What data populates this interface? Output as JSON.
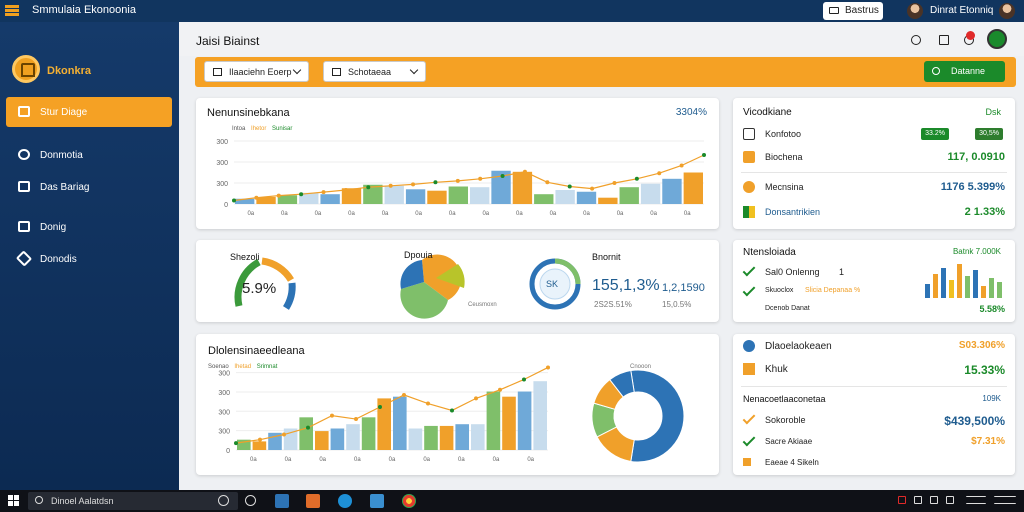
{
  "app": {
    "title": "Smmulaia Ekonoonia",
    "top_button": "Bastrus",
    "user_name": "Dinrat Etonniq"
  },
  "sidebar": {
    "brand": "Dkonkra",
    "items": [
      {
        "label": "Stur Diage",
        "icon": "home-icon"
      },
      {
        "label": "Donmotia",
        "icon": "users-icon"
      },
      {
        "label": "Das Bariag",
        "icon": "database-icon"
      },
      {
        "label": "Donig",
        "icon": "calendar-icon"
      },
      {
        "label": "Donodis",
        "icon": "wrench-icon"
      }
    ]
  },
  "header": {
    "title": "Jaisi Biainst"
  },
  "filters": {
    "dropdown1": "Ilaaciehn Eoerp",
    "dropdown2": "Schotaeaa",
    "action_button": "Datanne"
  },
  "chart1": {
    "title": "Nenunsinebkana",
    "right_value": "3304%",
    "legend": [
      "Intoa",
      "Ihetor",
      "Sunisar"
    ],
    "chart_data": {
      "type": "bar",
      "title": "Nenunsinebkana",
      "ylim": [
        0,
        200
      ],
      "y_ticks": [
        "0",
        "300",
        "300",
        "300"
      ],
      "x_ticks": [
        "0a",
        "0a",
        "0a",
        "0a",
        "0a",
        "0a",
        "0a",
        "0a",
        "0a",
        "0a",
        "0a",
        "0a",
        "0a",
        "0a"
      ],
      "colors": [
        "#6fa9d8",
        "#f0a02a",
        "#7fbf6a",
        "#c7dced"
      ],
      "values": [
        15,
        20,
        25,
        32,
        28,
        45,
        55,
        52,
        42,
        38,
        50,
        48,
        95,
        92,
        28,
        40,
        35,
        18,
        48,
        58,
        72,
        90
      ],
      "line": [
        10,
        18,
        24,
        28,
        34,
        40,
        48,
        52,
        56,
        62,
        66,
        72,
        80,
        92,
        62,
        50,
        44,
        60,
        72,
        88,
        110,
        140
      ]
    }
  },
  "gauge_card": {
    "label": "Shezoli",
    "value": "5.9%"
  },
  "pie_card": {
    "label": "Dpouia",
    "caption": "Ceusmoxn"
  },
  "ring_card": {
    "label": "Bnornit",
    "center": "SK",
    "big_value": "155,1,3%",
    "small_value": "1,2,1590",
    "sub_left": "2S2S.51%",
    "sub_right": "15,0.5%"
  },
  "chart2": {
    "title": "Dlolensinaeedleana",
    "legend": [
      "Soenao",
      "Ihetad",
      "Srimnat"
    ],
    "chart_data": {
      "type": "bar",
      "title": "Dlolensinaeedleana",
      "ylim": [
        0,
        100
      ],
      "y_ticks": [
        "0",
        "300",
        "300",
        "300",
        "300"
      ],
      "x_ticks": [
        "0a",
        "0a",
        "0a",
        "0a",
        "0a",
        "0a",
        "0a",
        "0a",
        "0a"
      ],
      "colors": [
        "#7fbf6a",
        "#f0a02a",
        "#6fa9d8",
        "#c7dced"
      ],
      "values": [
        12,
        10,
        20,
        25,
        38,
        22,
        25,
        30,
        38,
        60,
        62,
        25,
        28,
        28,
        30,
        30,
        68,
        62,
        68,
        80
      ],
      "line": [
        8,
        12,
        18,
        26,
        40,
        36,
        50,
        64,
        54,
        46,
        60,
        70,
        82,
        96
      ]
    }
  },
  "donut2": {
    "label": "Cnooon",
    "chart_data": {
      "type": "pie",
      "values": [
        55,
        15,
        12,
        10,
        8
      ],
      "colors": [
        "#2d73b5",
        "#f0a02a",
        "#7fbf6a",
        "#f0a02a",
        "#2d73b5"
      ]
    }
  },
  "right_top": {
    "title": "Vicodkiane",
    "right": "Dsk",
    "rows": [
      {
        "icon": "wallet-icon",
        "label": "Konfotoo",
        "badges": [
          "33.2%",
          "30,5%"
        ]
      },
      {
        "icon": "document-icon",
        "label": "Biochena",
        "value": "117, 0.0910",
        "color": "#1b8a2a"
      },
      {
        "icon": "heart-icon",
        "label": "Mecnsina",
        "value": "1176 5.399%",
        "color": "#1f5c8f"
      },
      {
        "icon": "bars-icon",
        "label": "Donsantrikien",
        "value": "2 1.33%",
        "color": "#1b8a2a"
      }
    ]
  },
  "right_mid": {
    "title": "Ntensloiada",
    "right": "Batnk 7.000K",
    "rows": [
      {
        "label": "Sal0 Onlenng",
        "value": "1"
      },
      {
        "label": "Skuoclox",
        "value": "Slicia Depanaa %"
      },
      {
        "label": "Dcenob Danat",
        "value": "5.58%"
      }
    ]
  },
  "right_bottom": {
    "rows": [
      {
        "icon": "heart-icon",
        "label": "Dlaoelaokeaen",
        "value": "S03.306%"
      },
      {
        "icon": "square-icon",
        "label": "Khuk",
        "value": "15.33%"
      }
    ],
    "title": "Nenacoetlaaconetaa",
    "right": "109K",
    "rows2": [
      {
        "label": "Sokoroble",
        "value": "$439,500%"
      },
      {
        "label": "Sacre Akiaae",
        "value": "$7.31%"
      },
      {
        "label": "Eaeae 4 Sikeln",
        "value": ""
      }
    ]
  },
  "taskbar": {
    "search": "Dinoel Aalatdsn"
  }
}
